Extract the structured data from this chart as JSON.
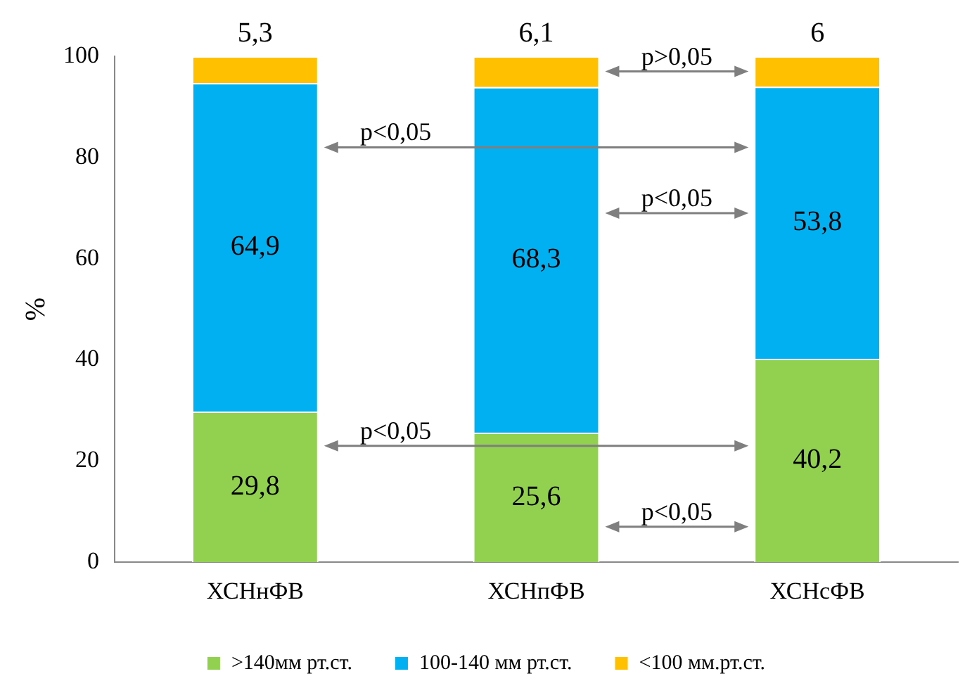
{
  "chart_data": {
    "type": "bar",
    "stacked": true,
    "categories": [
      "ХСНнФВ",
      "ХСНпФВ",
      "ХСНсФВ"
    ],
    "ylabel": "%",
    "ylim": [
      0,
      100
    ],
    "yticks": [
      0,
      20,
      40,
      60,
      80,
      100
    ],
    "grid": false,
    "legend": "bottom",
    "series": [
      {
        "name": ">140мм рт.ст.",
        "color": "#92d050",
        "values": [
          29.8,
          25.6,
          40.2
        ],
        "value_labels": [
          "29,8",
          "25,6",
          "40,2"
        ]
      },
      {
        "name": "100-140 мм рт.ст.",
        "color": "#00b0f0",
        "values": [
          64.9,
          68.3,
          53.8
        ],
        "value_labels": [
          "64,9",
          "68,3",
          "53,8"
        ]
      },
      {
        "name": "<100 мм.рт.ст.",
        "color": "#ffc000",
        "values": [
          5.3,
          6.1,
          6
        ],
        "value_labels": [
          "5,3",
          "6,1",
          "6"
        ]
      }
    ],
    "annotations": [
      "p>0,05",
      "p<0,05",
      "p<0,05",
      "p<0,05",
      "p<0,05"
    ]
  }
}
